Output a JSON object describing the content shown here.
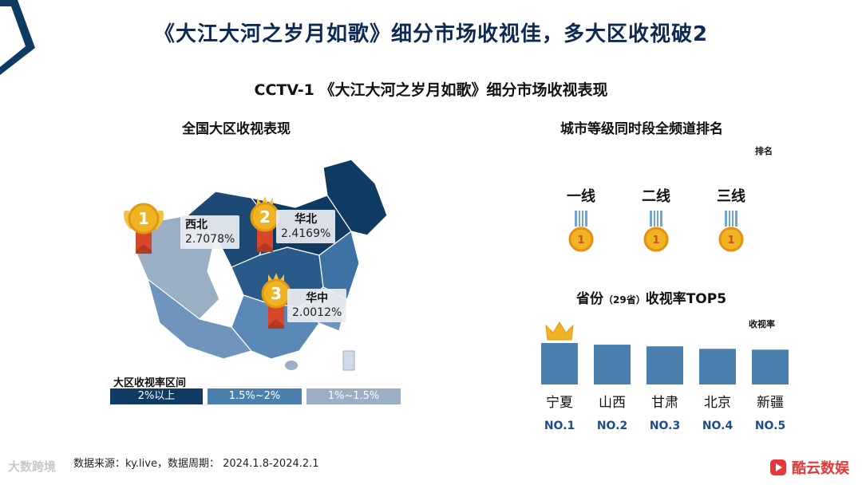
{
  "title": "《大江大河之岁月如歌》细分市场收视佳，多大区收视破2",
  "subtitle": "CCTV-1 《大江大河之岁月如歌》细分市场收视表现",
  "map_section": {
    "title": "全国大区收视表现",
    "regions": [
      {
        "rank": "1",
        "name": "西北",
        "value": "2.7078%"
      },
      {
        "rank": "2",
        "name": "华北",
        "value": "2.4169%"
      },
      {
        "rank": "3",
        "name": "华中",
        "value": "2.0012%"
      }
    ],
    "legend": {
      "title": "大区收视率区间",
      "items": [
        {
          "label": "2%以上",
          "color": "#0f3b63"
        },
        {
          "label": "1.5%~2%",
          "color": "#4a7fae"
        },
        {
          "label": "1%~1.5%",
          "color": "#9aaec4"
        }
      ]
    }
  },
  "city_section": {
    "title": "城市等级同时段全频道排名",
    "rank_label": "排名",
    "tiers": [
      {
        "label": "一线",
        "rank": "1"
      },
      {
        "label": "二线",
        "rank": "1"
      },
      {
        "label": "三线",
        "rank": "1"
      }
    ]
  },
  "province_section": {
    "title_main": "省份",
    "title_note": "（29省）",
    "title_rest": "收视率TOP5",
    "value_label": "收视率"
  },
  "chart_data": {
    "type": "bar",
    "title": "省份（29省）收视率TOP5",
    "categories": [
      "宁夏",
      "山西",
      "甘肃",
      "北京",
      "新疆"
    ],
    "ranks": [
      "NO.1",
      "NO.2",
      "NO.3",
      "NO.4",
      "NO.5"
    ],
    "values": [
      50,
      48,
      46,
      43,
      42
    ],
    "ylabel": "收视率",
    "bar_color": "#4a7fae",
    "grid": false
  },
  "footer": {
    "source": "数据来源：ky.live，数据周期： 2024.1.8-2024.2.1",
    "watermark": "大数跨境",
    "brand": "酷云数娱"
  },
  "colors": {
    "dark_region": "#0f3b63",
    "mid_region": "#4a7fae",
    "light_region": "#9aaec4",
    "medal_gold": "#f0b323",
    "medal_ribbon": "#d9472b",
    "brand_red": "#e5383b"
  }
}
